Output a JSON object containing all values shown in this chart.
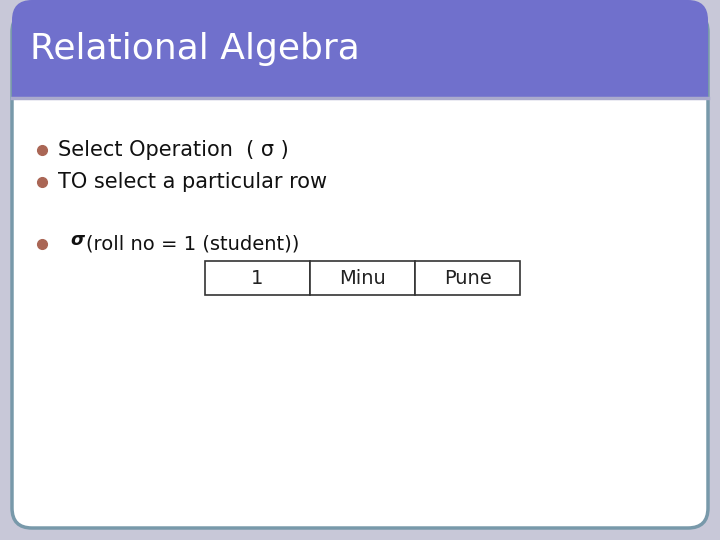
{
  "title": "Relational Algebra",
  "title_bg_color": "#7070cc",
  "title_text_color": "#ffffff",
  "body_bg_color": "#ffffff",
  "outer_bg_color": "#c8c8d8",
  "border_color": "#7899aa",
  "bullet_color": "#aa6655",
  "bullet1": "Select Operation  ( σ )",
  "bullet2": "TO select a particular row",
  "bullet3_prefix": "σ",
  "bullet3_suffix": "(roll no = 1 (student))",
  "table_data": [
    "1",
    "Minu",
    "Pune"
  ],
  "table_text_color": "#222222",
  "separator_line_color": "#aaaacc",
  "figsize": [
    7.2,
    5.4
  ],
  "dpi": 100
}
